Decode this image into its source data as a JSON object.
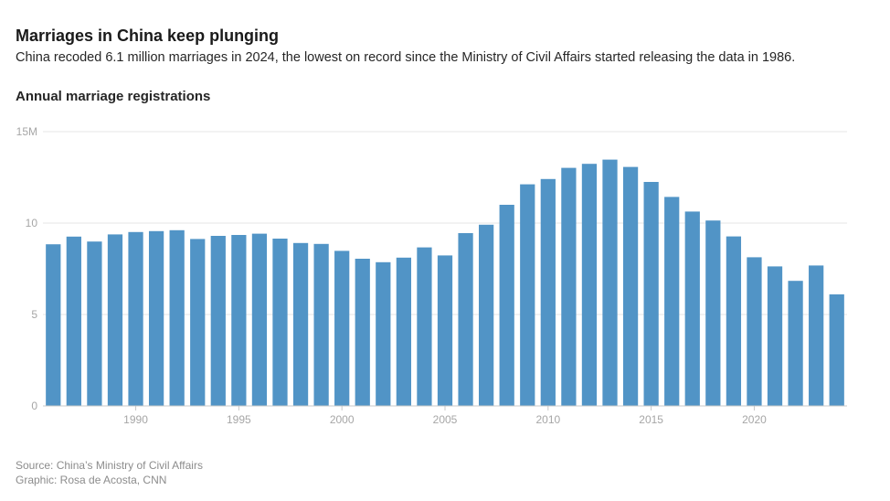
{
  "header": {
    "title": "Marriages in China keep plunging",
    "subtitle": "China recoded 6.1 million marriages in 2024, the lowest on record since the Ministry of Civil Affairs started releasing the data in 1986.",
    "chart_label": "Annual marriage registrations"
  },
  "footer": {
    "source": "Source: China’s Ministry of Civil Affairs",
    "credit": "Graphic: Rosa de Acosta, CNN"
  },
  "colors": {
    "bar": "#5194c6",
    "grid": "#e6e6e6",
    "axis": "#c8c8c8",
    "tick_text": "#a6a6a6"
  },
  "chart_data": {
    "type": "bar",
    "title": "Annual marriage registrations",
    "xlabel": "",
    "ylabel": "",
    "unit": "million",
    "ylim": [
      0,
      15
    ],
    "y_ticks": [
      {
        "value": 0,
        "label": "0"
      },
      {
        "value": 5,
        "label": "5"
      },
      {
        "value": 10,
        "label": "10"
      },
      {
        "value": 15,
        "label": "15M"
      }
    ],
    "x_ticks": [
      {
        "value": 1990,
        "label": "1990"
      },
      {
        "value": 1995,
        "label": "1995"
      },
      {
        "value": 2000,
        "label": "2000"
      },
      {
        "value": 2005,
        "label": "2005"
      },
      {
        "value": 2010,
        "label": "2010"
      },
      {
        "value": 2015,
        "label": "2015"
      },
      {
        "value": 2020,
        "label": "2020"
      }
    ],
    "grid": true,
    "categories": [
      1986,
      1987,
      1988,
      1989,
      1990,
      1991,
      1992,
      1993,
      1994,
      1995,
      1996,
      1997,
      1998,
      1999,
      2000,
      2001,
      2002,
      2003,
      2004,
      2005,
      2006,
      2007,
      2008,
      2009,
      2010,
      2011,
      2012,
      2013,
      2014,
      2015,
      2016,
      2017,
      2018,
      2019,
      2020,
      2021,
      2022,
      2023,
      2024
    ],
    "values": [
      8.84,
      9.26,
      8.99,
      9.38,
      9.51,
      9.56,
      9.61,
      9.13,
      9.3,
      9.35,
      9.42,
      9.15,
      8.91,
      8.86,
      8.48,
      8.05,
      7.86,
      8.11,
      8.67,
      8.23,
      9.45,
      9.91,
      11.0,
      12.12,
      12.41,
      13.02,
      13.24,
      13.47,
      13.07,
      12.25,
      11.43,
      10.63,
      10.14,
      9.27,
      8.13,
      7.63,
      6.84,
      7.68,
      6.1
    ]
  }
}
